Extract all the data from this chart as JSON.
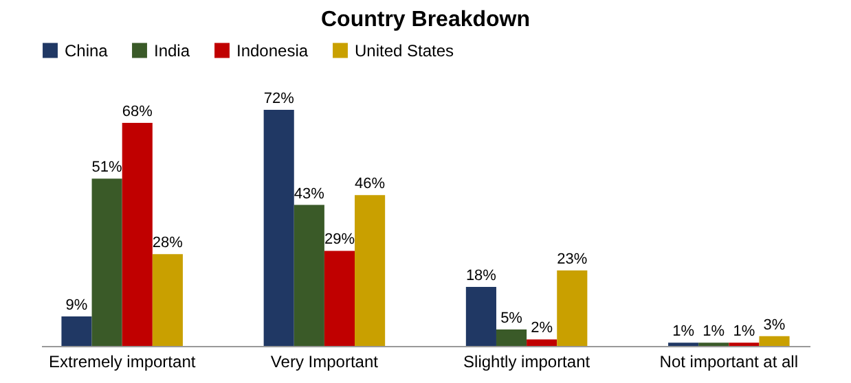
{
  "chart_data": {
    "type": "bar",
    "title": "Country Breakdown",
    "categories": [
      "Extremely important",
      "Very Important",
      "Slightly important",
      "Not important at all"
    ],
    "legend": "top",
    "series": [
      {
        "name": "China",
        "color": "#203864",
        "values": [
          9,
          72,
          18,
          1
        ],
        "value_labels": [
          "9%",
          "72%",
          "18%",
          "1%"
        ]
      },
      {
        "name": "India",
        "color": "#3a5a28",
        "values": [
          51,
          43,
          5,
          1
        ],
        "value_labels": [
          "51%",
          "43%",
          "5%",
          "1%"
        ]
      },
      {
        "name": "Indonesia",
        "color": "#c00000",
        "values": [
          68,
          29,
          2,
          1
        ],
        "value_labels": [
          "68%",
          "29%",
          "2%",
          "1%"
        ]
      },
      {
        "name": "United States",
        "color": "#c9a000",
        "values": [
          28,
          46,
          23,
          3
        ],
        "value_labels": [
          "28%",
          "46%",
          "23%",
          "3%"
        ]
      }
    ]
  }
}
